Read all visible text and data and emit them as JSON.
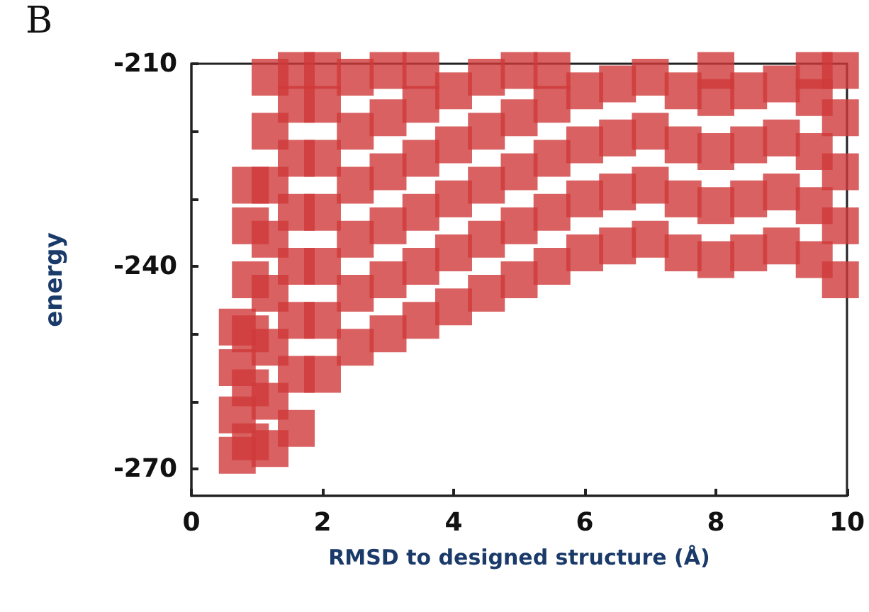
{
  "chart_data": {
    "type": "scatter",
    "xlabel": "RMSD to designed structure (Å)",
    "ylabel": "energy",
    "annotations": [
      "B"
    ],
    "color": "#d03a3a",
    "marker": "square",
    "grid": false,
    "x": [
      0.7,
      0.7,
      0.7,
      0.7,
      0.9,
      0.9,
      0.9,
      0.9,
      0.9,
      0.9,
      1.2,
      1.2,
      1.2,
      1.2,
      1.2,
      1.2,
      1.2,
      1.2,
      1.6,
      1.6,
      1.6,
      1.6,
      1.6,
      1.6,
      1.6,
      1.6,
      2.0,
      2.0,
      2.0,
      2.0,
      2.0,
      2.0,
      2.0,
      2.5,
      2.5,
      2.5,
      2.5,
      2.5,
      2.5,
      3.0,
      3.0,
      3.0,
      3.0,
      3.0,
      3.0,
      3.5,
      3.5,
      3.5,
      3.5,
      3.5,
      3.5,
      4.0,
      4.0,
      4.0,
      4.0,
      4.0,
      4.5,
      4.5,
      4.5,
      4.5,
      4.5,
      5.0,
      5.0,
      5.0,
      5.0,
      5.0,
      5.5,
      5.5,
      5.5,
      5.5,
      5.5,
      6.0,
      6.0,
      6.0,
      6.0,
      6.5,
      6.5,
      6.5,
      6.5,
      7.0,
      7.0,
      7.0,
      7.0,
      7.5,
      7.5,
      7.5,
      7.5,
      8.0,
      8.0,
      8.0,
      8.0,
      8.0,
      8.5,
      8.5,
      8.5,
      8.5,
      9.0,
      9.0,
      9.0,
      9.0,
      9.5,
      9.5,
      9.5,
      9.5,
      9.5,
      9.9,
      9.9,
      9.9,
      9.9,
      9.9
    ],
    "values": [
      -268,
      -262,
      -255,
      -249,
      -266,
      -258,
      -250,
      -242,
      -234,
      -228,
      -267,
      -260,
      -252,
      -244,
      -236,
      -228,
      -220,
      -212,
      -264,
      -256,
      -248,
      -240,
      -232,
      -224,
      -216,
      -211,
      -256,
      -248,
      -240,
      -232,
      -224,
      -216,
      -211,
      -252,
      -244,
      -236,
      -228,
      -220,
      -212,
      -250,
      -242,
      -234,
      -226,
      -218,
      -211,
      -248,
      -240,
      -232,
      -224,
      -216,
      -211,
      -246,
      -238,
      -230,
      -222,
      -214,
      -244,
      -236,
      -228,
      -220,
      -212,
      -242,
      -234,
      -226,
      -218,
      -211,
      -240,
      -232,
      -224,
      -216,
      -211,
      -238,
      -230,
      -222,
      -214,
      -237,
      -229,
      -221,
      -213,
      -236,
      -228,
      -220,
      -212,
      -238,
      -230,
      -222,
      -214,
      -239,
      -231,
      -223,
      -215,
      -211,
      -238,
      -230,
      -222,
      -214,
      -237,
      -229,
      -221,
      -213,
      -239,
      -231,
      -223,
      -215,
      -211,
      -242,
      -234,
      -226,
      -218,
      -211
    ],
    "xlim": [
      0,
      10
    ],
    "xticks": [
      0,
      2,
      4,
      6,
      8,
      10
    ],
    "ylim": [
      -274,
      -210
    ],
    "yticks": [
      -210,
      {
        "value": -220,
        "label": null
      },
      {
        "value": -230,
        "label": null
      },
      -240,
      {
        "value": -250,
        "label": null
      },
      {
        "value": -260,
        "label": null
      },
      -270
    ]
  }
}
